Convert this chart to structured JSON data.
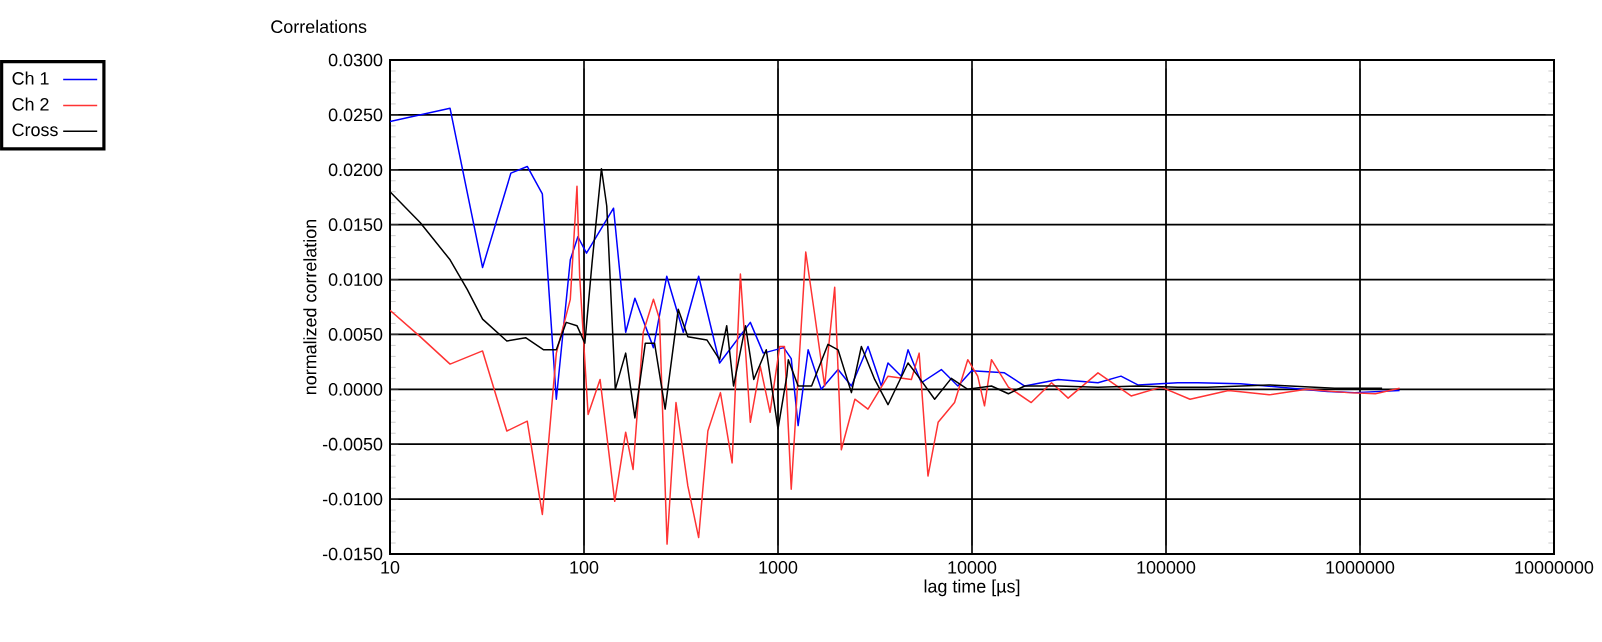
{
  "chart_data": {
    "type": "line",
    "title": "Correlations",
    "xlabel": "lag time [µs]",
    "ylabel": "normalized correlation",
    "log": "x",
    "grid": true,
    "legend": "top left",
    "marker": "none",
    "line_style": "solid",
    "xlim": [
      10,
      10000000
    ],
    "ylim": [
      -0.015,
      0.03
    ],
    "xticks": [
      10,
      100,
      1000,
      10000,
      100000,
      1000000,
      10000000
    ],
    "yticks": [
      {
        "value": -0.015,
        "label": "-0.0150"
      },
      {
        "value": -0.01,
        "label": "-0.0100"
      },
      {
        "value": -0.005,
        "label": "-0.0050"
      },
      {
        "value": 0,
        "label": "0.0000"
      },
      {
        "value": 0.005,
        "label": "0.0050"
      },
      {
        "value": 0.01,
        "label": "0.0100"
      },
      {
        "value": 0.015,
        "label": "0.0150"
      },
      {
        "value": 0.02,
        "label": "0.0200"
      },
      {
        "value": 0.025,
        "label": "0.0250"
      },
      {
        "value": 0.03,
        "label": "0.0300"
      }
    ],
    "series": [
      {
        "name": "Ch 1",
        "color": "#0000ff",
        "x": [
          10,
          20.4,
          30,
          42,
          51,
          61,
          72,
          85,
          93,
          103,
          142,
          164,
          183,
          228,
          267,
          325,
          390,
          500,
          720,
          840,
          1070,
          1170,
          1270,
          1430,
          1670,
          2040,
          2390,
          2910,
          3410,
          3690,
          4320,
          4680,
          5480,
          6950,
          8460,
          9950,
          14700,
          18700,
          27800,
          44600,
          58600,
          71600,
          115000,
          146000,
          242000,
          390000,
          680000,
          940000,
          1600000
        ],
        "values": [
          0.0244,
          0.0256,
          0.0111,
          0.0197,
          0.0203,
          0.0178,
          -0.0009,
          0.0118,
          0.0139,
          0.0124,
          0.0165,
          0.0052,
          0.0083,
          0.0038,
          0.0103,
          0.0052,
          0.0103,
          0.0024,
          0.0061,
          0.0033,
          0.0038,
          0.0028,
          -0.0033,
          0.0036,
          0,
          0.0018,
          0.0003,
          0.0039,
          0.0003,
          0.0024,
          0.0012,
          0.0036,
          0.0006,
          0.0018,
          0.0003,
          0.0017,
          0.0015,
          0.0003,
          0.0009,
          0.0006,
          0.0012,
          0.0004,
          0.0006,
          0.0006,
          0.0005,
          0.0002,
          -0.0002,
          -0.0003,
          -0.0001
        ]
      },
      {
        "name": "Ch 2",
        "color": "#ff3333",
        "x": [
          10,
          14.3,
          20.4,
          30,
          40,
          51,
          61,
          72,
          85,
          92,
          95,
          105,
          121,
          144,
          164,
          179,
          202,
          228,
          245,
          268,
          298,
          343,
          390,
          435,
          505,
          580,
          640,
          720,
          810,
          910,
          1020,
          1080,
          1170,
          1390,
          1540,
          1740,
          1960,
          2120,
          2490,
          2910,
          3690,
          4870,
          5340,
          5930,
          6690,
          8130,
          9510,
          10700,
          11600,
          12600,
          15400,
          20200,
          25700,
          31300,
          44600,
          66100,
          94500,
          133000,
          210000,
          340000,
          530000,
          860000,
          1200000,
          1600000
        ],
        "values": [
          0.0072,
          0.0048,
          0.0023,
          0.0035,
          -0.0038,
          -0.0029,
          -0.0114,
          0.0033,
          0.0082,
          0.0185,
          0.0103,
          -0.0023,
          0.0009,
          -0.0102,
          -0.0039,
          -0.0073,
          0.0052,
          0.0082,
          0.0064,
          -0.0141,
          -0.0012,
          -0.0088,
          -0.0135,
          -0.0038,
          -0.0003,
          -0.0067,
          0.0105,
          -0.003,
          0.0021,
          -0.0021,
          0.0039,
          0.0039,
          -0.0091,
          0.0125,
          0.007,
          0.0003,
          0.0093,
          -0.0055,
          -0.0009,
          -0.0018,
          0.0012,
          0.0009,
          0.0033,
          -0.0079,
          -0.003,
          -0.0012,
          0.0027,
          0.0012,
          -0.0015,
          0.0027,
          0.0002,
          -0.0012,
          0.0006,
          -0.0008,
          0.0015,
          -0.0006,
          0.0002,
          -0.0009,
          -0.0001,
          -0.0005,
          0,
          -0.0003,
          -0.0004,
          0.0001
        ]
      },
      {
        "name": "Cross",
        "color": "#000000",
        "x": [
          10,
          14.3,
          20.4,
          25,
          30,
          40,
          50,
          62,
          72,
          81,
          92,
          101,
          110,
          123,
          131,
          145,
          164,
          183,
          207,
          231,
          262,
          306,
          343,
          430,
          500,
          544,
          590,
          680,
          750,
          870,
          1000,
          1110,
          1130,
          1270,
          1490,
          1810,
          2040,
          2390,
          2690,
          3150,
          3690,
          4680,
          5270,
          6420,
          7820,
          9510,
          12600,
          15400,
          18700,
          27800,
          44600,
          71600,
          115000,
          163000,
          340000,
          740000,
          1300000
        ],
        "values": [
          0.018,
          0.0152,
          0.0118,
          0.0091,
          0.0064,
          0.0044,
          0.0047,
          0.0036,
          0.0036,
          0.0061,
          0.0058,
          0.0042,
          0.0115,
          0.0201,
          0.0167,
          0,
          0.0033,
          -0.0026,
          0.0042,
          0.0042,
          -0.0018,
          0.0073,
          0.0048,
          0.0045,
          0.0027,
          0.0058,
          0.0003,
          0.0058,
          0.0009,
          0.0036,
          -0.0036,
          0.0012,
          0.0027,
          0.0003,
          0.0003,
          0.0041,
          0.0036,
          -0.0003,
          0.0039,
          0.0009,
          -0.0014,
          0.0024,
          0.0012,
          -0.0009,
          0.001,
          0,
          0.0003,
          -0.0004,
          0.0003,
          0.0003,
          0.0002,
          0.0003,
          0.0002,
          0.0002,
          0.0004,
          0.0001,
          0.0001
        ]
      }
    ]
  }
}
